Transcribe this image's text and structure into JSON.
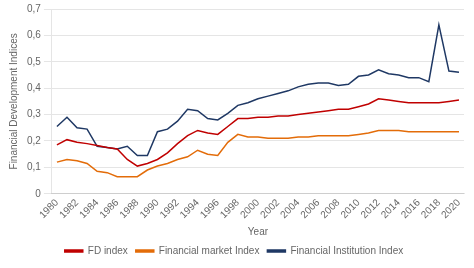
{
  "chart_data": {
    "type": "line",
    "x": [
      1980,
      1981,
      1982,
      1983,
      1984,
      1985,
      1986,
      1987,
      1988,
      1989,
      1990,
      1991,
      1992,
      1993,
      1994,
      1995,
      1996,
      1997,
      1998,
      1999,
      2000,
      2001,
      2002,
      2003,
      2004,
      2005,
      2006,
      2007,
      2008,
      2009,
      2010,
      2011,
      2012,
      2013,
      2014,
      2015,
      2016,
      2017,
      2018,
      2019,
      2020
    ],
    "series": [
      {
        "name": "FD index",
        "color": "#c00000",
        "values": [
          0.185,
          0.205,
          0.195,
          0.19,
          0.183,
          0.175,
          0.17,
          0.13,
          0.105,
          0.115,
          0.13,
          0.155,
          0.19,
          0.22,
          0.24,
          0.23,
          0.225,
          0.255,
          0.285,
          0.285,
          0.29,
          0.29,
          0.295,
          0.295,
          0.3,
          0.305,
          0.31,
          0.315,
          0.32,
          0.32,
          0.33,
          0.34,
          0.36,
          0.355,
          0.35,
          0.345,
          0.345,
          0.345,
          0.345,
          0.35,
          0.355
        ]
      },
      {
        "name": "Financial market Index",
        "color": "#e36c09",
        "values": [
          0.12,
          0.13,
          0.125,
          0.115,
          0.085,
          0.08,
          0.065,
          0.065,
          0.065,
          0.09,
          0.105,
          0.115,
          0.13,
          0.14,
          0.165,
          0.15,
          0.145,
          0.195,
          0.225,
          0.215,
          0.215,
          0.21,
          0.21,
          0.21,
          0.215,
          0.215,
          0.22,
          0.22,
          0.22,
          0.22,
          0.225,
          0.23,
          0.24,
          0.24,
          0.24,
          0.235,
          0.235,
          0.235,
          0.235,
          0.235,
          0.235
        ]
      },
      {
        "name": "Financial Institution Index",
        "color": "#1f3864",
        "values": [
          0.255,
          0.29,
          0.25,
          0.245,
          0.18,
          0.175,
          0.17,
          0.18,
          0.145,
          0.145,
          0.235,
          0.245,
          0.275,
          0.32,
          0.315,
          0.285,
          0.28,
          0.305,
          0.335,
          0.345,
          0.36,
          0.37,
          0.38,
          0.39,
          0.405,
          0.415,
          0.42,
          0.42,
          0.41,
          0.415,
          0.445,
          0.45,
          0.47,
          0.455,
          0.45,
          0.44,
          0.44,
          0.425,
          0.64,
          0.465,
          0.46
        ]
      }
    ],
    "xlabel": "Year",
    "ylabel": "Financial Development Indices",
    "xlim": [
      1979.5,
      2020.5
    ],
    "xticks": [
      1980,
      1982,
      1984,
      1986,
      1988,
      1990,
      1992,
      1994,
      1996,
      1998,
      2000,
      2002,
      2004,
      2006,
      2008,
      2010,
      2012,
      2014,
      2016,
      2018,
      2020
    ],
    "ylim": [
      0,
      0.7
    ],
    "yticks": [
      0,
      {
        "value": 0.1,
        "label": "0,1"
      },
      {
        "value": 0.2,
        "label": "0,2"
      },
      {
        "value": 0.3,
        "label": "0,3"
      },
      {
        "value": 0.4,
        "label": "0,4"
      },
      {
        "value": 0.5,
        "label": "0,5"
      },
      {
        "value": 0.6,
        "label": "0,6"
      },
      {
        "value": 0.7,
        "label": "0,7"
      }
    ],
    "grid": "y",
    "legend": "bottom"
  }
}
